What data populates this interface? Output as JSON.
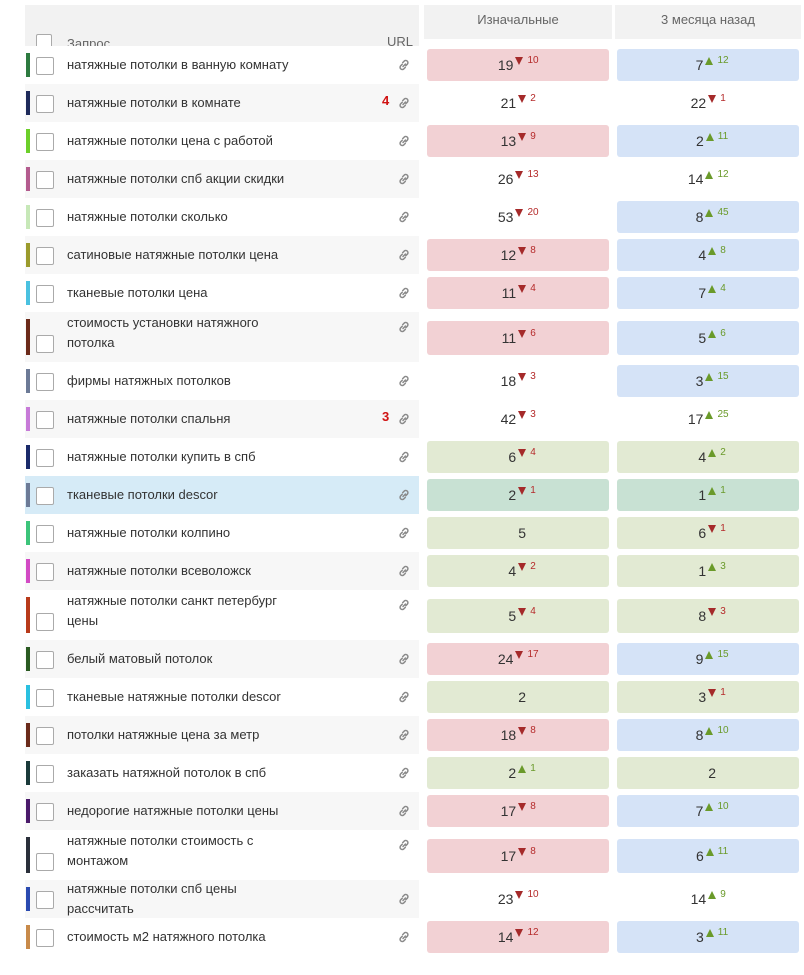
{
  "header": {
    "query_label": "Запрос",
    "url_label": "URL",
    "col1": "Изначальные",
    "col2": "3 месяца назад"
  },
  "rows": [
    {
      "query": "натяжные потолки в ванную комнату",
      "marker": "#2d7a3f",
      "badge": "",
      "tall": false,
      "hl": false,
      "c1": {
        "v": "19",
        "d": "down",
        "dv": "10",
        "bg": "red"
      },
      "c2": {
        "v": "7",
        "d": "up",
        "dv": "12",
        "bg": "blue"
      }
    },
    {
      "query": "натяжные потолки в комнате",
      "marker": "#1e2a5a",
      "badge": "4",
      "tall": false,
      "hl": false,
      "c1": {
        "v": "21",
        "d": "down",
        "dv": "2",
        "bg": "none"
      },
      "c2": {
        "v": "22",
        "d": "down",
        "dv": "1",
        "bg": "none"
      }
    },
    {
      "query": "натяжные потолки цена с работой",
      "marker": "#6ccf2a",
      "badge": "",
      "tall": false,
      "hl": false,
      "c1": {
        "v": "13",
        "d": "down",
        "dv": "9",
        "bg": "red"
      },
      "c2": {
        "v": "2",
        "d": "up",
        "dv": "11",
        "bg": "blue"
      }
    },
    {
      "query": "натяжные потолки спб акции скидки",
      "marker": "#b35b8e",
      "badge": "",
      "tall": false,
      "hl": false,
      "c1": {
        "v": "26",
        "d": "down",
        "dv": "13",
        "bg": "none"
      },
      "c2": {
        "v": "14",
        "d": "up",
        "dv": "12",
        "bg": "none"
      }
    },
    {
      "query": "натяжные потолки сколько",
      "marker": "#c7e8b8",
      "badge": "",
      "tall": false,
      "hl": false,
      "c1": {
        "v": "53",
        "d": "down",
        "dv": "20",
        "bg": "none"
      },
      "c2": {
        "v": "8",
        "d": "up",
        "dv": "45",
        "bg": "blue"
      }
    },
    {
      "query": "сатиновые натяжные потолки цена",
      "marker": "#9a9a2c",
      "badge": "",
      "tall": false,
      "hl": false,
      "c1": {
        "v": "12",
        "d": "down",
        "dv": "8",
        "bg": "red"
      },
      "c2": {
        "v": "4",
        "d": "up",
        "dv": "8",
        "bg": "blue"
      }
    },
    {
      "query": "тканевые потолки цена",
      "marker": "#4ac1e0",
      "badge": "",
      "tall": false,
      "hl": false,
      "c1": {
        "v": "11",
        "d": "down",
        "dv": "4",
        "bg": "red"
      },
      "c2": {
        "v": "7",
        "d": "up",
        "dv": "4",
        "bg": "blue"
      }
    },
    {
      "query": "стоимость установки натяжного потолка",
      "marker": "#6b2a1a",
      "badge": "",
      "tall": true,
      "hl": false,
      "c1": {
        "v": "11",
        "d": "down",
        "dv": "6",
        "bg": "red"
      },
      "c2": {
        "v": "5",
        "d": "up",
        "dv": "6",
        "bg": "blue"
      }
    },
    {
      "query": "фирмы натяжных потолков",
      "marker": "#6c7a96",
      "badge": "",
      "tall": false,
      "hl": false,
      "c1": {
        "v": "18",
        "d": "down",
        "dv": "3",
        "bg": "none"
      },
      "c2": {
        "v": "3",
        "d": "up",
        "dv": "15",
        "bg": "blue"
      }
    },
    {
      "query": "натяжные потолки спальня",
      "marker": "#c77ad8",
      "badge": "3",
      "tall": false,
      "hl": false,
      "c1": {
        "v": "42",
        "d": "down",
        "dv": "3",
        "bg": "none"
      },
      "c2": {
        "v": "17",
        "d": "up",
        "dv": "25",
        "bg": "none"
      }
    },
    {
      "query": "натяжные потолки купить в спб",
      "marker": "#1a2a6a",
      "badge": "",
      "tall": false,
      "hl": false,
      "c1": {
        "v": "6",
        "d": "down",
        "dv": "4",
        "bg": "green"
      },
      "c2": {
        "v": "4",
        "d": "up",
        "dv": "2",
        "bg": "green"
      }
    },
    {
      "query": "тканевые потолки descor",
      "marker": "#6c7a96",
      "badge": "",
      "tall": false,
      "hl": true,
      "c1": {
        "v": "2",
        "d": "down",
        "dv": "1",
        "bg": "teal"
      },
      "c2": {
        "v": "1",
        "d": "up",
        "dv": "1",
        "bg": "teal"
      }
    },
    {
      "query": "натяжные потолки колпино",
      "marker": "#3cc47a",
      "badge": "",
      "tall": false,
      "hl": false,
      "c1": {
        "v": "5",
        "d": "",
        "dv": "",
        "bg": "green"
      },
      "c2": {
        "v": "6",
        "d": "down",
        "dv": "1",
        "bg": "green"
      }
    },
    {
      "query": "натяжные потолки всеволожск",
      "marker": "#d24ac4",
      "badge": "",
      "tall": false,
      "hl": false,
      "c1": {
        "v": "4",
        "d": "down",
        "dv": "2",
        "bg": "green"
      },
      "c2": {
        "v": "1",
        "d": "up",
        "dv": "3",
        "bg": "green"
      }
    },
    {
      "query": "натяжные потолки санкт петербург цены",
      "marker": "#b83a1a",
      "badge": "",
      "tall": true,
      "hl": false,
      "c1": {
        "v": "5",
        "d": "down",
        "dv": "4",
        "bg": "green"
      },
      "c2": {
        "v": "8",
        "d": "down",
        "dv": "3",
        "bg": "green"
      }
    },
    {
      "query": "белый матовый потолок",
      "marker": "#2a5a22",
      "badge": "",
      "tall": false,
      "hl": false,
      "c1": {
        "v": "24",
        "d": "down",
        "dv": "17",
        "bg": "red"
      },
      "c2": {
        "v": "9",
        "d": "up",
        "dv": "15",
        "bg": "blue"
      }
    },
    {
      "query": "тканевые натяжные потолки descor",
      "marker": "#2ac0e0",
      "badge": "",
      "tall": false,
      "hl": false,
      "c1": {
        "v": "2",
        "d": "",
        "dv": "",
        "bg": "green"
      },
      "c2": {
        "v": "3",
        "d": "down",
        "dv": "1",
        "bg": "green"
      }
    },
    {
      "query": "потолки натяжные цена за метр",
      "marker": "#6a2a1a",
      "badge": "",
      "tall": false,
      "hl": false,
      "c1": {
        "v": "18",
        "d": "down",
        "dv": "8",
        "bg": "red"
      },
      "c2": {
        "v": "8",
        "d": "up",
        "dv": "10",
        "bg": "blue"
      }
    },
    {
      "query": "заказать натяжной потолок в спб",
      "marker": "#1a3a3a",
      "badge": "",
      "tall": false,
      "hl": false,
      "c1": {
        "v": "2",
        "d": "up",
        "dv": "1",
        "bg": "green"
      },
      "c2": {
        "v": "2",
        "d": "",
        "dv": "",
        "bg": "green"
      }
    },
    {
      "query": "недорогие натяжные потолки цены",
      "marker": "#4a1a6a",
      "badge": "",
      "tall": false,
      "hl": false,
      "c1": {
        "v": "17",
        "d": "down",
        "dv": "8",
        "bg": "red"
      },
      "c2": {
        "v": "7",
        "d": "up",
        "dv": "10",
        "bg": "blue"
      }
    },
    {
      "query": "натяжные потолки стоимость с монтажом",
      "marker": "#2a2f3a",
      "badge": "",
      "tall": true,
      "hl": false,
      "c1": {
        "v": "17",
        "d": "down",
        "dv": "8",
        "bg": "red"
      },
      "c2": {
        "v": "6",
        "d": "up",
        "dv": "11",
        "bg": "blue"
      }
    },
    {
      "query": "натяжные потолки спб цены рассчитать",
      "marker": "#2a4ab0",
      "badge": "",
      "tall": false,
      "hl": false,
      "c1": {
        "v": "23",
        "d": "down",
        "dv": "10",
        "bg": "none"
      },
      "c2": {
        "v": "14",
        "d": "up",
        "dv": "9",
        "bg": "none"
      }
    },
    {
      "query": "стоимость м2 натяжного потолка",
      "marker": "#c88a4a",
      "badge": "",
      "tall": false,
      "hl": false,
      "c1": {
        "v": "14",
        "d": "down",
        "dv": "12",
        "bg": "red"
      },
      "c2": {
        "v": "3",
        "d": "up",
        "dv": "11",
        "bg": "blue"
      }
    }
  ]
}
